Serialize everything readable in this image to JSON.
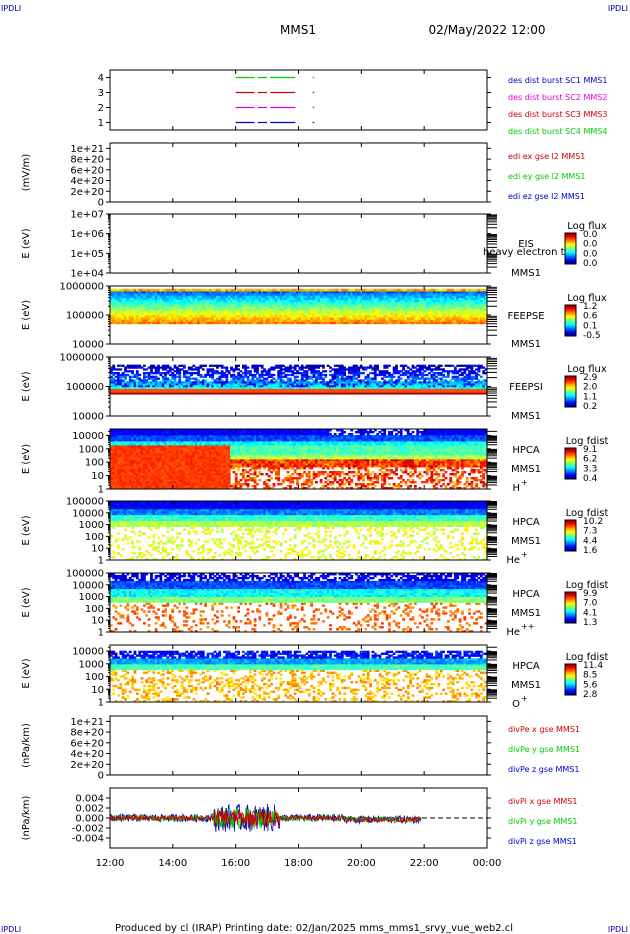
{
  "corners": {
    "tl": "IPDLI",
    "tr": "IPDLI",
    "bl": "IPDLI",
    "br": "IPDLI"
  },
  "header": {
    "spacecraft": "MMS1",
    "datetime": "02/May/2022 12:00"
  },
  "footer": {
    "text": "Produced by cl (IRAP)   Printing date: 02/Jan/2025   mms_mms1_srvy_vue_web2.cl"
  },
  "time_axis": {
    "start_hour": 12,
    "end_hour": 24,
    "ticks": [
      {
        "h": 12,
        "label": "12:00"
      },
      {
        "h": 14,
        "label": "14:00"
      },
      {
        "h": 16,
        "label": "16:00"
      },
      {
        "h": 18,
        "label": "18:00"
      },
      {
        "h": 20,
        "label": "20:00"
      },
      {
        "h": 22,
        "label": "22:00"
      },
      {
        "h": 24,
        "label": "00:00"
      }
    ]
  },
  "colors": {
    "red": "#d00000",
    "green": "#00cc00",
    "blue": "#0000cc",
    "magenta": "#dd00dd",
    "axis": "#000000"
  },
  "chart_data": [
    {
      "id": "burst",
      "type": "line",
      "ylabel": "",
      "ylim": [
        0.5,
        4.5
      ],
      "yticks": [
        {
          "v": 1,
          "label": "1"
        },
        {
          "v": 2,
          "label": "2"
        },
        {
          "v": 3,
          "label": "3"
        },
        {
          "v": 4,
          "label": "4"
        }
      ],
      "legend": [
        {
          "text": "des dist burst SC1 MMS1",
          "color": "#0000cc"
        },
        {
          "text": "des dist burst SC2 MMS2",
          "color": "#dd00dd"
        },
        {
          "text": "des dist burst SC3 MMS3",
          "color": "#d00000"
        },
        {
          "text": "des dist burst SC4 MMS4",
          "color": "#00cc00"
        }
      ],
      "series": [
        {
          "level": 4,
          "color": "#00cc00",
          "segments": [
            [
              16.0,
              16.6
            ],
            [
              16.7,
              17.0
            ],
            [
              17.1,
              17.9
            ],
            [
              18.45,
              18.5
            ]
          ]
        },
        {
          "level": 3,
          "color": "#d00000",
          "segments": [
            [
              16.0,
              16.6
            ],
            [
              16.7,
              17.0
            ],
            [
              17.1,
              17.9
            ],
            [
              18.45,
              18.5
            ]
          ]
        },
        {
          "level": 2,
          "color": "#dd00dd",
          "segments": [
            [
              16.0,
              16.6
            ],
            [
              16.7,
              17.0
            ],
            [
              17.1,
              17.9
            ],
            [
              18.45,
              18.5
            ]
          ]
        },
        {
          "level": 1,
          "color": "#0000cc",
          "segments": [
            [
              16.0,
              16.6
            ],
            [
              16.7,
              17.0
            ],
            [
              17.1,
              17.9
            ],
            [
              18.45,
              18.5
            ]
          ]
        }
      ]
    },
    {
      "id": "edi",
      "type": "line",
      "ylabel": "(mV/m)",
      "ylim": [
        0,
        1.1e+21
      ],
      "yticks": [
        {
          "v": 0,
          "label": "0"
        },
        {
          "v": 2e+20,
          "label": "2e+20"
        },
        {
          "v": 4e+20,
          "label": "4e+20"
        },
        {
          "v": 6e+20,
          "label": "6e+20"
        },
        {
          "v": 8e+20,
          "label": "8e+20"
        },
        {
          "v": 1e+21,
          "label": "1e+21"
        }
      ],
      "legend": [
        {
          "text": "edi ex gse l2 MMS1",
          "color": "#d00000"
        },
        {
          "text": "edi ey gse l2 MMS1",
          "color": "#00cc00"
        },
        {
          "text": "edi ez gse l2 MMS1",
          "color": "#0000cc"
        }
      ],
      "zero_line": true
    },
    {
      "id": "eis",
      "type": "heatmap",
      "ylabel": "E (eV)",
      "ylog": true,
      "ylim": [
        10000,
        10000000
      ],
      "yticks": [
        {
          "v": 10000,
          "label": "1e+04"
        },
        {
          "v": 100000,
          "label": "1e+05"
        },
        {
          "v": 1000000,
          "label": "1e+06"
        },
        {
          "v": 10000000,
          "label": "1e+07"
        }
      ],
      "instrument": [
        "EIS",
        "MMS1"
      ],
      "overlay_text": "heavy electron to",
      "colorbar": {
        "title": "Log flux",
        "ticks": [
          "0.0",
          "0.0",
          "0.0",
          "0.0"
        ]
      },
      "empty": true
    },
    {
      "id": "feepse",
      "type": "heatmap",
      "ylabel": "E (eV)",
      "ylog": true,
      "ylim": [
        10000,
        1000000
      ],
      "yticks": [
        {
          "v": 10000,
          "label": "10000"
        },
        {
          "v": 100000,
          "label": "100000"
        },
        {
          "v": 1000000,
          "label": "1000000"
        }
      ],
      "instrument": [
        "FEEPSE",
        "MMS1"
      ],
      "colorbar": {
        "title": "Log flux",
        "ticks": [
          "1.2",
          "0.6",
          "0.1",
          "-0.5"
        ]
      },
      "band": [
        50000,
        800000
      ],
      "pattern": "feepse"
    },
    {
      "id": "feepsi",
      "type": "heatmap",
      "ylabel": "E (eV)",
      "ylog": true,
      "ylim": [
        10000,
        1000000
      ],
      "yticks": [
        {
          "v": 10000,
          "label": "10000"
        },
        {
          "v": 100000,
          "label": "100000"
        },
        {
          "v": 1000000,
          "label": "1000000"
        }
      ],
      "instrument": [
        "FEEPSI",
        "MMS1"
      ],
      "colorbar": {
        "title": "Log flux",
        "ticks": [
          "2.9",
          "2.0",
          "1.1",
          "0.2"
        ]
      },
      "band": [
        55000,
        550000
      ],
      "pattern": "feepsi"
    },
    {
      "id": "hpca_h",
      "type": "heatmap",
      "ylabel": "E (eV)",
      "ylog": true,
      "ylim": [
        1,
        30000
      ],
      "yticks": [
        {
          "v": 1,
          "label": "1"
        },
        {
          "v": 10,
          "label": "10"
        },
        {
          "v": 100,
          "label": "100"
        },
        {
          "v": 1000,
          "label": "1000"
        },
        {
          "v": 10000,
          "label": "10000"
        }
      ],
      "instrument": [
        "HPCA",
        "MMS1"
      ],
      "species": "H",
      "charge": "+",
      "colorbar": {
        "title": "Log fdist",
        "ticks": [
          "9.1",
          "6.2",
          "3.3",
          "0.4"
        ]
      },
      "pattern": "h"
    },
    {
      "id": "hpca_he",
      "type": "heatmap",
      "ylabel": "E (eV)",
      "ylog": true,
      "ylim": [
        1,
        100000
      ],
      "yticks": [
        {
          "v": 1,
          "label": "1"
        },
        {
          "v": 10,
          "label": "10"
        },
        {
          "v": 100,
          "label": "100"
        },
        {
          "v": 1000,
          "label": "1000"
        },
        {
          "v": 10000,
          "label": "10000"
        },
        {
          "v": 100000,
          "label": "100000"
        }
      ],
      "instrument": [
        "HPCA",
        "MMS1"
      ],
      "species": "He",
      "charge": "+",
      "colorbar": {
        "title": "Log fdist",
        "ticks": [
          "10.2",
          "7.3",
          "4.4",
          "1.6"
        ]
      },
      "pattern": "he"
    },
    {
      "id": "hpca_hepp",
      "type": "heatmap",
      "ylabel": "E (eV)",
      "ylog": true,
      "ylim": [
        1,
        100000
      ],
      "yticks": [
        {
          "v": 1,
          "label": "1"
        },
        {
          "v": 10,
          "label": "10"
        },
        {
          "v": 100,
          "label": "100"
        },
        {
          "v": 1000,
          "label": "1000"
        },
        {
          "v": 10000,
          "label": "10000"
        },
        {
          "v": 100000,
          "label": "100000"
        }
      ],
      "instrument": [
        "HPCA",
        "MMS1"
      ],
      "species": "He",
      "charge": "++",
      "colorbar": {
        "title": "Log fdist",
        "ticks": [
          "9.9",
          "7.0",
          "4.1",
          "1.3"
        ]
      },
      "pattern": "hepp"
    },
    {
      "id": "hpca_o",
      "type": "heatmap",
      "ylabel": "E (eV)",
      "ylog": true,
      "ylim": [
        1,
        30000
      ],
      "yticks": [
        {
          "v": 1,
          "label": "1"
        },
        {
          "v": 10,
          "label": "10"
        },
        {
          "v": 100,
          "label": "100"
        },
        {
          "v": 1000,
          "label": "1000"
        },
        {
          "v": 10000,
          "label": "10000"
        }
      ],
      "instrument": [
        "HPCA",
        "MMS1"
      ],
      "species": "O",
      "charge": "+",
      "colorbar": {
        "title": "Log fdist",
        "ticks": [
          "11.4",
          "8.5",
          "5.6",
          "2.8"
        ]
      },
      "pattern": "o"
    },
    {
      "id": "divpe",
      "type": "line",
      "ylabel": "(nPa/km)",
      "ylim": [
        0,
        1.1e+21
      ],
      "yticks": [
        {
          "v": 0,
          "label": "0"
        },
        {
          "v": 2e+20,
          "label": "2e+20"
        },
        {
          "v": 4e+20,
          "label": "4e+20"
        },
        {
          "v": 6e+20,
          "label": "6e+20"
        },
        {
          "v": 8e+20,
          "label": "8e+20"
        },
        {
          "v": 1e+21,
          "label": "1e+21"
        }
      ],
      "legend": [
        {
          "text": "divPe x gse MMS1",
          "color": "#d00000"
        },
        {
          "text": "divPe y gse MMS1",
          "color": "#00cc00"
        },
        {
          "text": "divPe z gse MMS1",
          "color": "#0000cc"
        }
      ],
      "zero_line": true
    },
    {
      "id": "divpi",
      "type": "line",
      "ylabel": "(nPa/km)",
      "ylim": [
        -0.006,
        0.006
      ],
      "yticks": [
        {
          "v": -0.004,
          "label": "-0.004"
        },
        {
          "v": -0.002,
          "label": "-0.002"
        },
        {
          "v": 0,
          "label": "0.000"
        },
        {
          "v": 0.002,
          "label": "0.002"
        },
        {
          "v": 0.004,
          "label": "0.004"
        }
      ],
      "legend": [
        {
          "text": "divPi x gse MMS1",
          "color": "#d00000"
        },
        {
          "text": "divPi y gse MMS1",
          "color": "#00cc00"
        },
        {
          "text": "divPi z gse MMS1",
          "color": "#0000cc"
        }
      ],
      "zero_line": true,
      "data_end_hour": 21.9
    }
  ]
}
